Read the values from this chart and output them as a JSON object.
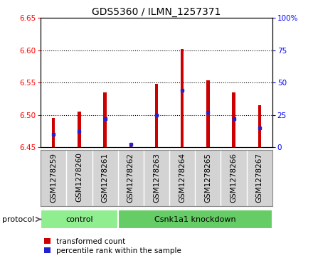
{
  "title": "GDS5360 / ILMN_1257371",
  "samples": [
    "GSM1278259",
    "GSM1278260",
    "GSM1278261",
    "GSM1278262",
    "GSM1278263",
    "GSM1278264",
    "GSM1278265",
    "GSM1278266",
    "GSM1278267"
  ],
  "transformed_counts": [
    6.495,
    6.505,
    6.535,
    6.453,
    6.548,
    6.602,
    6.553,
    6.535,
    6.515
  ],
  "percentile_ranks": [
    10,
    12,
    22,
    2,
    25,
    44,
    27,
    22,
    15
  ],
  "bar_bottom": 6.45,
  "ylim": [
    6.45,
    6.65
  ],
  "y2lim": [
    0,
    100
  ],
  "yticks": [
    6.45,
    6.5,
    6.55,
    6.6,
    6.65
  ],
  "y2ticks": [
    0,
    25,
    50,
    75,
    100
  ],
  "bar_color": "#cc0000",
  "dot_color": "#2222cc",
  "grid_color": "#000000",
  "bg_color": "#ffffff",
  "label_bg_color": "#d3d3d3",
  "label_separator_color": "#aaaaaa",
  "protocol_groups": [
    {
      "label": "control",
      "start": 0,
      "end": 3,
      "color": "#90ee90"
    },
    {
      "label": "Csnk1a1 knockdown",
      "start": 3,
      "end": 9,
      "color": "#66cc66"
    }
  ],
  "protocol_label": "protocol",
  "legend_items": [
    {
      "label": "transformed count",
      "color": "#cc0000"
    },
    {
      "label": "percentile rank within the sample",
      "color": "#2222cc"
    }
  ],
  "title_fontsize": 10,
  "tick_fontsize": 7.5,
  "label_fontsize": 8
}
